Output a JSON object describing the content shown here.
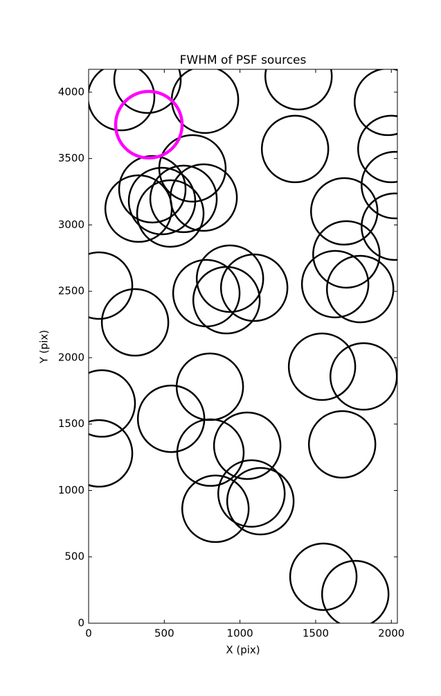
{
  "chart_data": {
    "type": "scatter",
    "title": "FWHM of PSF sources",
    "x_label": "X (pix)",
    "y_label": "Y (pix)",
    "xlim": [
      0,
      2040
    ],
    "ylim": [
      0,
      4172
    ],
    "xticks": [
      0,
      500,
      1000,
      1500,
      2000
    ],
    "yticks": [
      0,
      500,
      1000,
      1500,
      2000,
      2500,
      3000,
      3500,
      4000
    ],
    "series": [
      {
        "color": "#000000",
        "x": [
          215,
          389,
          769,
          1387,
          1977,
          1364,
          2000,
          2023,
          2023,
          686,
          421,
          330,
          485,
          627,
          760,
          540,
          1689,
          1703,
          69,
          934,
          778,
          911,
          1094,
          1629,
          1794,
          307,
          1542,
          1817,
          87,
          801,
          545,
          69,
          805,
          1048,
          1675,
          1076,
          1135,
          838,
          1551,
          1762
        ],
        "values": [
          3963,
          4094,
          3943,
          4120,
          3927,
          3572,
          3572,
          3300,
          2987,
          3426,
          3269,
          3123,
          3180,
          3196,
          3206,
          3086,
          3102,
          2778,
          2543,
          2595,
          2486,
          2433,
          2527,
          2554,
          2517,
          2266,
          1932,
          1859,
          1655,
          1781,
          1540,
          1279,
          1285,
          1337,
          1347,
          977,
          919,
          862,
          350,
          219
        ]
      },
      {
        "color": "#ff00ff",
        "x": [
          398
        ],
        "values": [
          3755
        ]
      }
    ]
  }
}
